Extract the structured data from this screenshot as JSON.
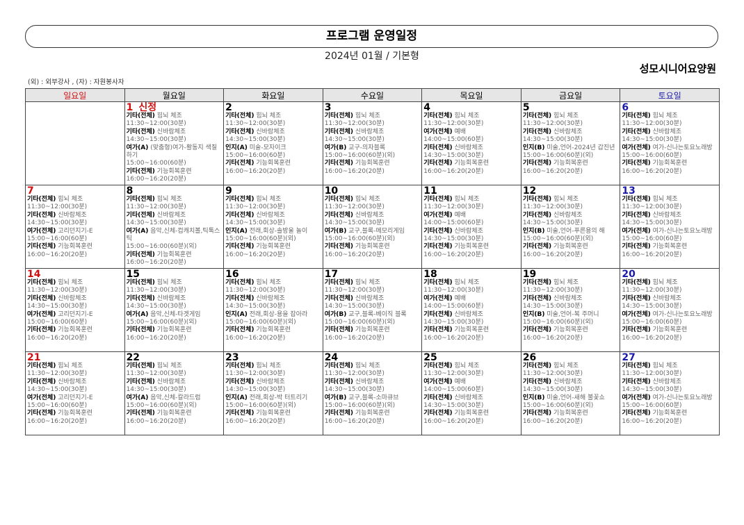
{
  "title": "프로그램 운영일정",
  "subtitle": "2024년 01월 / 기본형",
  "org": "성모시니어요양원",
  "note": "(외) : 외부강사 , (자) : 자원봉사자",
  "colors": {
    "sunday": "#d01010",
    "saturday": "#1a1aa8",
    "weekday": "#000000"
  },
  "weekdays": [
    "일요일",
    "월요일",
    "화요일",
    "수요일",
    "목요일",
    "금요일",
    "토요일"
  ],
  "weeks": [
    [
      null,
      {
        "day": "1",
        "label": "신정",
        "items": [
          [
            "기타(전체)",
            "힘뇌 체조",
            "11:30~12:00(30분)"
          ],
          [
            "기타(전체)",
            "신바람체조",
            "14:30~15:00(30분)"
          ],
          [
            "여가(A)",
            "(맞춤형)여가-활동지 색칠하기",
            "15:00~16:00(60분)"
          ],
          [
            "기타(전체)",
            "기능회복훈련",
            "16:00~16:20(20분)"
          ]
        ]
      },
      {
        "day": "2",
        "items": [
          [
            "기타(전체)",
            "힘뇌 체조",
            "11:30~12:00(30분)"
          ],
          [
            "기타(전체)",
            "신바람체조",
            "14:30~15:00(30분)"
          ],
          [
            "인지(A)",
            "미술-모자이크",
            "15:00~16:00(60분)"
          ],
          [
            "기타(전체)",
            "기능회복훈련",
            "16:00~16:20(20분)"
          ]
        ]
      },
      {
        "day": "3",
        "items": [
          [
            "기타(전체)",
            "힘뇌 체조",
            "11:30~12:00(30분)"
          ],
          [
            "기타(전체)",
            "신바람체조",
            "14:30~15:00(30분)"
          ],
          [
            "여가(B)",
            "교구-의자블록",
            "15:00~16:00(60분)(외)"
          ],
          [
            "기타(전체)",
            "기능회복훈련",
            "16:00~16:20(20분)"
          ]
        ]
      },
      {
        "day": "4",
        "items": [
          [
            "기타(전체)",
            "힘뇌 체조",
            "11:30~12:00(30분)"
          ],
          [
            "여가(전체)",
            "예배",
            "14:00~15:00(60분)"
          ],
          [
            "기타(전체)",
            "신바람체조",
            "14:30~15:00(30분)"
          ],
          [
            "기타(전체)",
            "기능회복훈련",
            "16:00~16:20(20분)"
          ]
        ]
      },
      {
        "day": "5",
        "items": [
          [
            "기타(전체)",
            "힘뇌 체조",
            "11:30~12:00(30분)"
          ],
          [
            "기타(전체)",
            "신바람체조",
            "14:30~15:00(30분)"
          ],
          [
            "인지(B)",
            "미술,언어-2024년 갑진년",
            "15:00~16:00(60분)(외)"
          ],
          [
            "기타(전체)",
            "기능회복훈련",
            "16:00~16:20(20분)"
          ]
        ]
      },
      {
        "day": "6",
        "items": [
          [
            "기타(전체)",
            "힘뇌 체조",
            "11:30~12:00(30분)"
          ],
          [
            "기타(전체)",
            "신바람체조",
            "14:30~15:00(30분)"
          ],
          [
            "여가(전체)",
            "여가-신나는토요노래방",
            "15:00~16:00(60분)"
          ],
          [
            "기타(전체)",
            "기능회복훈련",
            "16:00~16:20(20분)"
          ]
        ]
      }
    ],
    [
      {
        "day": "7",
        "items": [
          [
            "기타(전체)",
            "힘뇌 체조",
            "11:30~12:00(30분)"
          ],
          [
            "기타(전체)",
            "신바람체조",
            "14:30~15:00(30분)"
          ],
          [
            "여가(전체)",
            "고리던지기-E",
            "15:00~16:00(60분)"
          ],
          [
            "기타(전체)",
            "기능회복훈련",
            "16:00~16:20(20분)"
          ]
        ]
      },
      {
        "day": "8",
        "items": [
          [
            "기타(전체)",
            "힘뇌 체조",
            "11:30~12:00(30분)"
          ],
          [
            "기타(전체)",
            "신바람체조",
            "14:30~15:00(30분)"
          ],
          [
            "여가(A)",
            "음악,신체-컵캐치볼,틱톡스틱",
            "15:00~16:00(60분)(외)"
          ],
          [
            "기타(전체)",
            "기능회복훈련",
            "16:00~16:20(20분)"
          ]
        ]
      },
      {
        "day": "9",
        "items": [
          [
            "기타(전체)",
            "힘뇌 체조",
            "11:30~12:00(30분)"
          ],
          [
            "기타(전체)",
            "신바람체조",
            "14:30~15:00(30분)"
          ],
          [
            "인지(A)",
            "전래,회상-솔방울 놀이",
            "15:00~16:00(60분)(외)"
          ],
          [
            "기타(전체)",
            "기능회복훈련",
            "16:00~16:20(20분)"
          ]
        ]
      },
      {
        "day": "10",
        "items": [
          [
            "기타(전체)",
            "힘뇌 체조",
            "11:30~12:00(30분)"
          ],
          [
            "기타(전체)",
            "신바람체조",
            "14:30~15:00(30분)"
          ],
          [
            "여가(B)",
            "교구,블록-메모리게임",
            "15:00~16:00(60분)(외)"
          ],
          [
            "기타(전체)",
            "기능회복훈련",
            "16:00~16:20(20분)"
          ]
        ]
      },
      {
        "day": "11",
        "items": [
          [
            "기타(전체)",
            "힘뇌 체조",
            "11:30~12:00(30분)"
          ],
          [
            "여가(전체)",
            "예배",
            "14:00~15:00(60분)"
          ],
          [
            "기타(전체)",
            "신바람체조",
            "14:30~15:00(30분)"
          ],
          [
            "기타(전체)",
            "기능회복훈련",
            "16:00~16:20(20분)"
          ]
        ]
      },
      {
        "day": "12",
        "items": [
          [
            "기타(전체)",
            "힘뇌 체조",
            "11:30~12:00(30분)"
          ],
          [
            "기타(전체)",
            "신바람체조",
            "14:30~15:00(30분)"
          ],
          [
            "인지(B)",
            "미술,언어-푸른용의 해",
            "15:00~16:00(60분)(외)"
          ],
          [
            "기타(전체)",
            "기능회복훈련",
            "16:00~16:20(20분)"
          ]
        ]
      },
      {
        "day": "13",
        "items": [
          [
            "기타(전체)",
            "힘뇌 체조",
            "11:30~12:00(30분)"
          ],
          [
            "기타(전체)",
            "신바람체조",
            "14:30~15:00(30분)"
          ],
          [
            "여가(전체)",
            "여가-신나는토요노래방",
            "15:00~16:00(60분)"
          ],
          [
            "기타(전체)",
            "기능회복훈련",
            "16:00~16:20(20분)"
          ]
        ]
      }
    ],
    [
      {
        "day": "14",
        "items": [
          [
            "기타(전체)",
            "힘뇌 체조",
            "11:30~12:00(30분)"
          ],
          [
            "기타(전체)",
            "신바람체조",
            "14:30~15:00(30분)"
          ],
          [
            "여가(전체)",
            "고리던지기-E",
            "15:00~16:00(60분)"
          ],
          [
            "기타(전체)",
            "기능회복훈련",
            "16:00~16:20(20분)"
          ]
        ]
      },
      {
        "day": "15",
        "items": [
          [
            "기타(전체)",
            "힘뇌 체조",
            "11:30~12:00(30분)"
          ],
          [
            "기타(전체)",
            "신바람체조",
            "14:30~15:00(30분)"
          ],
          [
            "여가(A)",
            "음악,신체-타겟게임",
            "15:00~16:00(60분)(외)"
          ],
          [
            "기타(전체)",
            "기능회복훈련",
            "16:00~16:20(20분)"
          ]
        ]
      },
      {
        "day": "16",
        "items": [
          [
            "기타(전체)",
            "힘뇌 체조",
            "11:30~12:00(30분)"
          ],
          [
            "기타(전체)",
            "신바람체조",
            "14:30~15:00(30분)"
          ],
          [
            "인지(A)",
            "전래,회상-용을 잡아라",
            "15:00~16:00(60분)(외)"
          ],
          [
            "기타(전체)",
            "기능회복훈련",
            "16:00~16:20(20분)"
          ]
        ]
      },
      {
        "day": "17",
        "items": [
          [
            "기타(전체)",
            "힘뇌 체조",
            "11:30~12:00(30분)"
          ],
          [
            "기타(전체)",
            "신바람체조",
            "14:30~15:00(30분)"
          ],
          [
            "여가(B)",
            "교구,블록-베이직 블록",
            "15:00~16:00(60분)(외)"
          ],
          [
            "기타(전체)",
            "기능회복훈련",
            "16:00~16:20(20분)"
          ]
        ]
      },
      {
        "day": "18",
        "items": [
          [
            "기타(전체)",
            "힘뇌 체조",
            "11:30~12:00(30분)"
          ],
          [
            "여가(전체)",
            "예배",
            "14:00~15:00(60분)"
          ],
          [
            "기타(전체)",
            "신바람체조",
            "14:30~15:00(30분)"
          ],
          [
            "기타(전체)",
            "기능회복훈련",
            "16:00~16:20(20분)"
          ]
        ]
      },
      {
        "day": "19",
        "items": [
          [
            "기타(전체)",
            "힘뇌 체조",
            "11:30~12:00(30분)"
          ],
          [
            "기타(전체)",
            "신바람체조",
            "14:30~15:00(30분)"
          ],
          [
            "인지(B)",
            "미술,언어-복 주머니",
            "15:00~16:00(60분)(외)"
          ],
          [
            "기타(전체)",
            "기능회복훈련",
            "16:00~16:20(20분)"
          ]
        ]
      },
      {
        "day": "20",
        "items": [
          [
            "기타(전체)",
            "힘뇌 체조",
            "11:30~12:00(30분)"
          ],
          [
            "기타(전체)",
            "신바람체조",
            "14:30~15:00(30분)"
          ],
          [
            "여가(전체)",
            "여가-신나는토요노래방",
            "15:00~16:00(60분)"
          ],
          [
            "기타(전체)",
            "기능회복훈련",
            "16:00~16:20(20분)"
          ]
        ]
      }
    ],
    [
      {
        "day": "21",
        "items": [
          [
            "기타(전체)",
            "힘뇌 체조",
            "11:30~12:00(30분)"
          ],
          [
            "기타(전체)",
            "신바람체조",
            "14:30~15:00(30분)"
          ],
          [
            "여가(전체)",
            "고리던지기-E",
            "15:00~16:00(60분)"
          ],
          [
            "기타(전체)",
            "기능회복훈련",
            "16:00~16:20(20분)"
          ]
        ]
      },
      {
        "day": "22",
        "items": [
          [
            "기타(전체)",
            "힘뇌 체조",
            "11:30~12:00(30분)"
          ],
          [
            "기타(전체)",
            "신바람체조",
            "14:30~15:00(30분)"
          ],
          [
            "여가(A)",
            "음악,신체-칼라드럼",
            "15:00~16:00(60분)(외)"
          ],
          [
            "기타(전체)",
            "기능회복훈련",
            "16:00~16:20(20분)"
          ]
        ]
      },
      {
        "day": "23",
        "items": [
          [
            "기타(전체)",
            "힘뇌 체조",
            "11:30~12:00(30분)"
          ],
          [
            "기타(전체)",
            "신바람체조",
            "14:30~15:00(30분)"
          ],
          [
            "인지(A)",
            "전래,회상-박 터트리기",
            "15:00~16:00(60분)(외)"
          ],
          [
            "기타(전체)",
            "기능회복훈련",
            "16:00~16:20(20분)"
          ]
        ]
      },
      {
        "day": "24",
        "items": [
          [
            "기타(전체)",
            "힘뇌 체조",
            "11:30~12:00(30분)"
          ],
          [
            "기타(전체)",
            "신바람체조",
            "14:30~15:00(30분)"
          ],
          [
            "여가(B)",
            "교구,블록-소마큐브",
            "15:00~16:00(60분)(외)"
          ],
          [
            "기타(전체)",
            "기능회복훈련",
            "16:00~16:20(20분)"
          ]
        ]
      },
      {
        "day": "25",
        "items": [
          [
            "기타(전체)",
            "힘뇌 체조",
            "11:30~12:00(30분)"
          ],
          [
            "여가(전체)",
            "예배",
            "14:00~15:00(60분)"
          ],
          [
            "기타(전체)",
            "신바람체조",
            "14:30~15:00(30분)"
          ],
          [
            "기타(전체)",
            "기능회복훈련",
            "16:00~16:20(20분)"
          ]
        ]
      },
      {
        "day": "26",
        "items": [
          [
            "기타(전체)",
            "힘뇌 체조",
            "11:30~12:00(30분)"
          ],
          [
            "기타(전체)",
            "신바람체조",
            "14:30~15:00(30분)"
          ],
          [
            "인지(B)",
            "미술,언어-새해 불꽃쇼",
            "15:00~16:00(60분)(외)"
          ],
          [
            "기타(전체)",
            "기능회복훈련",
            "16:00~16:20(20분)"
          ]
        ]
      },
      {
        "day": "27",
        "items": [
          [
            "기타(전체)",
            "힘뇌 체조",
            "11:30~12:00(30분)"
          ],
          [
            "기타(전체)",
            "신바람체조",
            "14:30~15:00(30분)"
          ],
          [
            "여가(전체)",
            "여가-신나는토요노래방",
            "15:00~16:00(60분)"
          ],
          [
            "기타(전체)",
            "기능회복훈련",
            "16:00~16:20(20분)"
          ]
        ]
      }
    ]
  ]
}
